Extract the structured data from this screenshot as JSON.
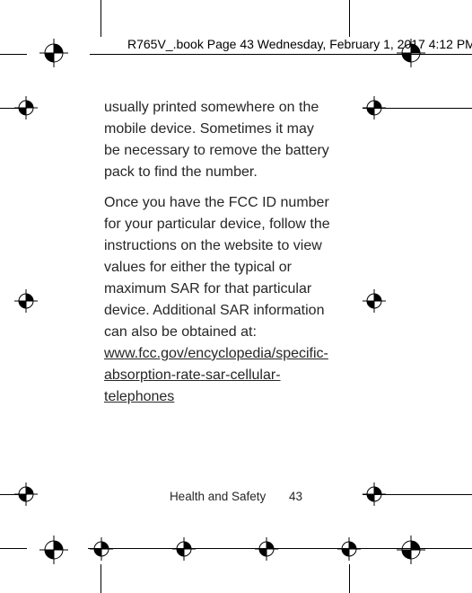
{
  "header": {
    "text": "R765V_.book  Page 43  Wednesday, February 1, 2017  4:12 PM"
  },
  "paragraphs": {
    "p1": "usually printed somewhere on the mobile device. Sometimes it may be necessary to remove the battery pack to find the number.",
    "p2": "Once you have the FCC ID number for your particular device, follow the instructions on the website to view values for either the typical or maximum SAR for that particular device. Additional SAR information can also be obtained at: ",
    "link": "www.fcc.gov/encyclopedia/specific-absorption-rate-sar-cellular-telephones"
  },
  "footer": {
    "label": "Health and Safety",
    "page": "43"
  },
  "colors": {
    "text": "#262626",
    "black": "#000000",
    "bg": "#ffffff"
  }
}
